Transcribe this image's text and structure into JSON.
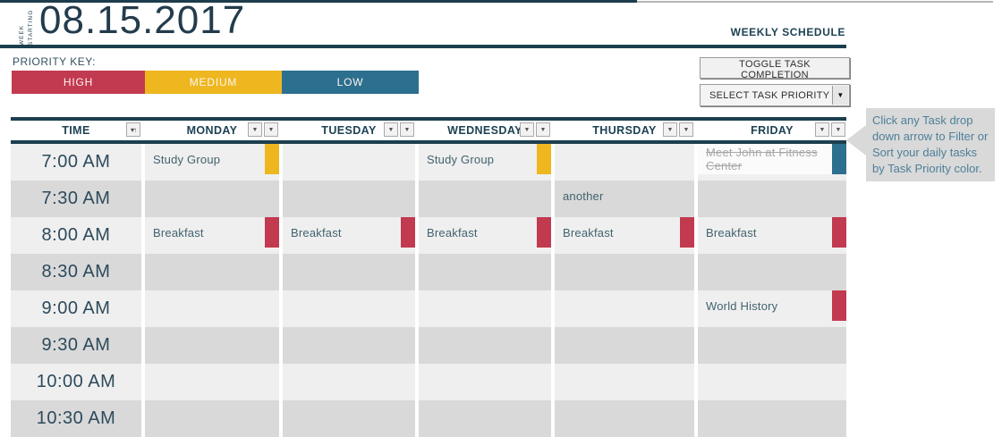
{
  "header": {
    "week_starting_line1": "WEEK",
    "week_starting_line2": "STARTING",
    "date": "08.15.2017",
    "title": "WEEKLY SCHEDULE"
  },
  "priority_key": {
    "label": "PRIORITY KEY:",
    "items": [
      {
        "label": "HIGH",
        "key": "high",
        "color": "#c23a50"
      },
      {
        "label": "MEDIUM",
        "key": "medium",
        "color": "#eeb71f"
      },
      {
        "label": "LOW",
        "key": "low",
        "color": "#2c6f8e"
      }
    ]
  },
  "controls": {
    "toggle_button_label": "TOGGLE TASK COMPLETION",
    "priority_dropdown_label": "SELECT TASK PRIORITY"
  },
  "icons": {
    "dropdown_arrow": "▼",
    "time_sort_glyph": "▾↑"
  },
  "callout": {
    "text": "Click any Task drop down arrow to Filter or Sort your daily tasks by Task Priority color."
  },
  "schedule": {
    "columns": [
      "TIME",
      "MONDAY",
      "TUESDAY",
      "WEDNESDAY",
      "THURSDAY",
      "FRIDAY"
    ],
    "times": [
      "7:00 AM",
      "7:30 AM",
      "8:00 AM",
      "8:30 AM",
      "9:00 AM",
      "9:30 AM",
      "10:00 AM",
      "10:30 AM"
    ],
    "tasks": [
      {
        "day": "MONDAY",
        "time": "7:00 AM",
        "label": "Study Group",
        "priority": "medium",
        "completed": false
      },
      {
        "day": "WEDNESDAY",
        "time": "7:00 AM",
        "label": "Study Group",
        "priority": "medium",
        "completed": false
      },
      {
        "day": "FRIDAY",
        "time": "7:00 AM",
        "label": "Meet John at Fitness Center",
        "priority": "low",
        "completed": true
      },
      {
        "day": "THURSDAY",
        "time": "7:30 AM",
        "label": "another",
        "priority": null,
        "completed": false
      },
      {
        "day": "MONDAY",
        "time": "8:00 AM",
        "label": "Breakfast",
        "priority": "high",
        "completed": false
      },
      {
        "day": "TUESDAY",
        "time": "8:00 AM",
        "label": "Breakfast",
        "priority": "high",
        "completed": false
      },
      {
        "day": "WEDNESDAY",
        "time": "8:00 AM",
        "label": "Breakfast",
        "priority": "high",
        "completed": false
      },
      {
        "day": "THURSDAY",
        "time": "8:00 AM",
        "label": "Breakfast",
        "priority": "high",
        "completed": false
      },
      {
        "day": "FRIDAY",
        "time": "8:00 AM",
        "label": "Breakfast",
        "priority": "high",
        "completed": false
      },
      {
        "day": "FRIDAY",
        "time": "9:00 AM",
        "label": "World History",
        "priority": "high",
        "completed": false
      }
    ]
  }
}
